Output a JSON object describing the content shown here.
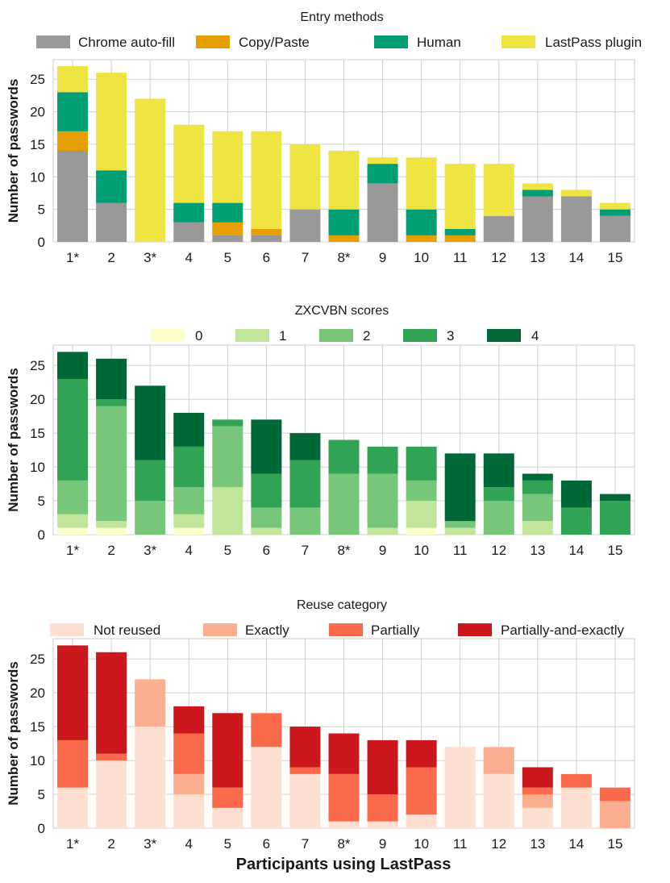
{
  "chart_data": [
    {
      "type": "bar",
      "stacked": true,
      "title": "Entry methods",
      "ylabel": "Number of passwords",
      "xlabel": "",
      "ylim": [
        0,
        28
      ],
      "yticks": [
        0,
        5,
        10,
        15,
        20,
        25
      ],
      "grid": true,
      "legend_position": "top",
      "categories": [
        "1*",
        "2",
        "3*",
        "4",
        "5",
        "6",
        "7",
        "8*",
        "9",
        "10",
        "11",
        "12",
        "13",
        "14",
        "15"
      ],
      "series": [
        {
          "name": "Chrome auto-fill",
          "color": "#999999",
          "values": [
            14,
            6,
            0,
            3,
            1,
            1,
            5,
            0,
            9,
            0,
            0,
            4,
            7,
            7,
            4
          ]
        },
        {
          "name": "Copy/Paste",
          "color": "#e69f00",
          "values": [
            3,
            0,
            0,
            0,
            2,
            1,
            0,
            1,
            0,
            1,
            1,
            0,
            0,
            0,
            0
          ]
        },
        {
          "name": "Human",
          "color": "#009e73",
          "values": [
            6,
            5,
            0,
            3,
            3,
            0,
            0,
            4,
            3,
            4,
            1,
            0,
            1,
            0,
            1
          ]
        },
        {
          "name": "LastPass plugin",
          "color": "#f0e442",
          "values": [
            4,
            15,
            22,
            12,
            11,
            15,
            10,
            9,
            1,
            8,
            10,
            8,
            1,
            1,
            1
          ]
        }
      ]
    },
    {
      "type": "bar",
      "stacked": true,
      "title": "ZXCVBN scores",
      "ylabel": "Number of passwords",
      "xlabel": "",
      "ylim": [
        0,
        28
      ],
      "yticks": [
        0,
        5,
        10,
        15,
        20,
        25
      ],
      "grid": true,
      "legend_position": "top",
      "categories": [
        "1*",
        "2",
        "3*",
        "4",
        "5",
        "6",
        "7",
        "8*",
        "9",
        "10",
        "11",
        "12",
        "13",
        "14",
        "15"
      ],
      "series": [
        {
          "name": "0",
          "color": "#ffffcc",
          "values": [
            1,
            1,
            0,
            1,
            0,
            0,
            0,
            0,
            0,
            1,
            0,
            0,
            0,
            0,
            0
          ]
        },
        {
          "name": "1",
          "color": "#c2e699",
          "values": [
            2,
            1,
            0,
            2,
            7,
            1,
            0,
            0,
            1,
            4,
            1,
            0,
            2,
            0,
            0
          ]
        },
        {
          "name": "2",
          "color": "#78c679",
          "values": [
            5,
            17,
            5,
            4,
            9,
            3,
            4,
            9,
            8,
            3,
            1,
            5,
            4,
            0,
            0
          ]
        },
        {
          "name": "3",
          "color": "#31a354",
          "values": [
            15,
            1,
            6,
            6,
            1,
            5,
            7,
            5,
            4,
            5,
            0,
            2,
            2,
            4,
            5
          ]
        },
        {
          "name": "4",
          "color": "#006837",
          "values": [
            4,
            6,
            11,
            5,
            0,
            8,
            4,
            0,
            0,
            0,
            10,
            5,
            1,
            4,
            1
          ]
        }
      ]
    },
    {
      "type": "bar",
      "stacked": true,
      "title": "Reuse category",
      "ylabel": "Number of passwords",
      "xlabel": "Participants using LastPass",
      "ylim": [
        0,
        28
      ],
      "yticks": [
        0,
        5,
        10,
        15,
        20,
        25
      ],
      "grid": true,
      "legend_position": "top",
      "categories": [
        "1*",
        "2",
        "3*",
        "4",
        "5",
        "6",
        "7",
        "8*",
        "9",
        "10",
        "11",
        "12",
        "13",
        "14",
        "15"
      ],
      "series": [
        {
          "name": "Not reused",
          "color": "#fee0d2",
          "values": [
            6,
            10,
            15,
            5,
            3,
            12,
            8,
            1,
            1,
            2,
            12,
            8,
            3,
            6,
            0
          ]
        },
        {
          "name": "Exactly",
          "color": "#fcae91",
          "values": [
            0,
            0,
            7,
            3,
            0,
            0,
            0,
            0,
            0,
            0,
            0,
            4,
            2,
            0,
            4
          ]
        },
        {
          "name": "Partially",
          "color": "#fb6a4a",
          "values": [
            7,
            1,
            0,
            6,
            3,
            5,
            1,
            7,
            4,
            7,
            0,
            0,
            1,
            2,
            2
          ]
        },
        {
          "name": "Partially-and-exactly",
          "color": "#cb181d",
          "values": [
            14,
            15,
            0,
            4,
            11,
            0,
            6,
            6,
            8,
            4,
            0,
            0,
            3,
            0,
            0
          ]
        }
      ]
    }
  ]
}
